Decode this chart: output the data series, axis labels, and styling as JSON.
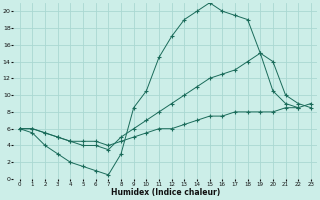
{
  "xlabel": "Humidex (Indice chaleur)",
  "bg_color": "#cceee8",
  "grid_color": "#aad8d2",
  "line_color": "#1a6b5a",
  "xlim": [
    -0.5,
    23.5
  ],
  "ylim": [
    0,
    21
  ],
  "xticks": [
    0,
    1,
    2,
    3,
    4,
    5,
    6,
    7,
    8,
    9,
    10,
    11,
    12,
    13,
    14,
    15,
    16,
    17,
    18,
    19,
    20,
    21,
    22,
    23
  ],
  "yticks": [
    0,
    2,
    4,
    6,
    8,
    10,
    12,
    14,
    16,
    18,
    20
  ],
  "line1_x": [
    0,
    1,
    2,
    3,
    4,
    5,
    6,
    7,
    8,
    9,
    10,
    11,
    12,
    13,
    14,
    15,
    16,
    17,
    18,
    19,
    20,
    21,
    22
  ],
  "line1_y": [
    6,
    5.5,
    4,
    3,
    2,
    1.5,
    1,
    0.5,
    3,
    8.5,
    10.5,
    14.5,
    17,
    19,
    20,
    21,
    20,
    19.5,
    19,
    15,
    10.5,
    9,
    8.5
  ],
  "line2_x": [
    0,
    1,
    2,
    3,
    4,
    5,
    6,
    7,
    8,
    9,
    10,
    11,
    12,
    13,
    14,
    15,
    16,
    17,
    18,
    19,
    20,
    21,
    22,
    23
  ],
  "line2_y": [
    6,
    6,
    5.5,
    5,
    4.5,
    4,
    4,
    3.5,
    5,
    6,
    7,
    8,
    9,
    10,
    11,
    12,
    12.5,
    13,
    14,
    15,
    14,
    10,
    9,
    8.5
  ],
  "line3_x": [
    0,
    1,
    2,
    3,
    4,
    5,
    6,
    7,
    8,
    9,
    10,
    11,
    12,
    13,
    14,
    15,
    16,
    17,
    18,
    19,
    20,
    21,
    22,
    23
  ],
  "line3_y": [
    6,
    6,
    5.5,
    5,
    4.5,
    4.5,
    4.5,
    4,
    4.5,
    5,
    5.5,
    6,
    6,
    6.5,
    7,
    7.5,
    7.5,
    8,
    8,
    8,
    8,
    8.5,
    8.5,
    9
  ]
}
